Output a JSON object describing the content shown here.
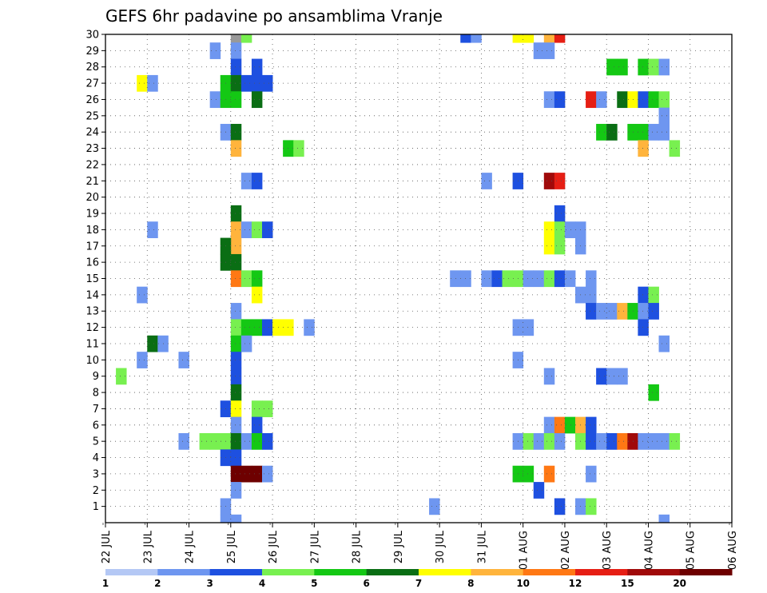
{
  "chart_data": {
    "type": "heatmap",
    "title": "GEFS 6hr padavine po ansamblima Vranje",
    "y_ticks": [
      "1",
      "2",
      "3",
      "4",
      "5",
      "6",
      "7",
      "8",
      "9",
      "10",
      "11",
      "12",
      "13",
      "14",
      "15",
      "16",
      "17",
      "18",
      "19",
      "20",
      "21",
      "22",
      "23",
      "24",
      "25",
      "26",
      "27",
      "28",
      "29",
      "30"
    ],
    "x_ticks": [
      "22 JUL",
      "23 JUL",
      "24 JUL",
      "25 JUL",
      "26 JUL",
      "27 JUL",
      "28 JUL",
      "29 JUL",
      "30 JUL",
      "31 JUL",
      "01 AUG",
      "02 AUG",
      "03 AUG",
      "04 AUG",
      "05 AUG",
      "06 AUG"
    ],
    "ylim": [
      0,
      30
    ],
    "grid": true,
    "colorbar": {
      "labels": [
        "1",
        "2",
        "3",
        "4",
        "5",
        "6",
        "7",
        "8",
        "10",
        "12",
        "15",
        "20"
      ],
      "colors": [
        "#b4c8f5",
        "#6e96f0",
        "#1e50e0",
        "#78f050",
        "#14c814",
        "#0a6e14",
        "#ffff00",
        "#ffb43c",
        "#ff7814",
        "#e61e14",
        "#a00a0a",
        "#6e0000"
      ]
    },
    "cells": [
      [
        30,
        25.0,
        25.25,
        12
      ],
      [
        30,
        25.25,
        25.5,
        3
      ],
      [
        30,
        30.5,
        30.75,
        2
      ],
      [
        30,
        30.75,
        31.0,
        1
      ],
      [
        30,
        31.75,
        32.0,
        6
      ],
      [
        30,
        32.0,
        32.25,
        6
      ],
      [
        30,
        32.5,
        32.75,
        7
      ],
      [
        30,
        32.75,
        33.0,
        9
      ],
      [
        29,
        24.5,
        24.75,
        1
      ],
      [
        29,
        25.0,
        25.25,
        1
      ],
      [
        29,
        32.25,
        32.5,
        1
      ],
      [
        29,
        32.5,
        32.75,
        1
      ],
      [
        28,
        25.0,
        25.25,
        2
      ],
      [
        28,
        25.5,
        25.75,
        2
      ],
      [
        28,
        34.0,
        34.25,
        4
      ],
      [
        28,
        34.25,
        34.5,
        4
      ],
      [
        28,
        34.75,
        35.0,
        4
      ],
      [
        28,
        35.0,
        35.25,
        3
      ],
      [
        28,
        35.25,
        35.5,
        1
      ],
      [
        27,
        22.75,
        23.0,
        6
      ],
      [
        27,
        23.0,
        23.25,
        1
      ],
      [
        27,
        24.75,
        25.0,
        4
      ],
      [
        27,
        25.0,
        25.25,
        5
      ],
      [
        27,
        25.25,
        25.5,
        2
      ],
      [
        27,
        25.5,
        25.75,
        2
      ],
      [
        27,
        25.75,
        26.0,
        2
      ],
      [
        26,
        24.5,
        24.75,
        1
      ],
      [
        26,
        24.75,
        25.0,
        4
      ],
      [
        26,
        25.0,
        25.25,
        4
      ],
      [
        26,
        25.5,
        25.75,
        5
      ],
      [
        26,
        32.5,
        32.75,
        1
      ],
      [
        26,
        32.75,
        33.0,
        2
      ],
      [
        26,
        33.5,
        33.75,
        9
      ],
      [
        26,
        33.75,
        34.0,
        1
      ],
      [
        26,
        34.25,
        34.5,
        5
      ],
      [
        26,
        34.5,
        34.75,
        6
      ],
      [
        26,
        34.75,
        35.0,
        2
      ],
      [
        26,
        35.0,
        35.25,
        4
      ],
      [
        26,
        35.25,
        35.5,
        3
      ],
      [
        25,
        35.25,
        35.5,
        1
      ],
      [
        24,
        24.75,
        25.0,
        1
      ],
      [
        24,
        25.0,
        25.25,
        5
      ],
      [
        24,
        33.75,
        34.0,
        4
      ],
      [
        24,
        34.0,
        34.25,
        5
      ],
      [
        24,
        34.5,
        34.75,
        4
      ],
      [
        24,
        34.75,
        35.0,
        4
      ],
      [
        24,
        35.0,
        35.25,
        1
      ],
      [
        24,
        35.25,
        35.5,
        1
      ],
      [
        23,
        25.0,
        25.25,
        7
      ],
      [
        23,
        26.25,
        26.5,
        4
      ],
      [
        23,
        26.5,
        26.75,
        3
      ],
      [
        23,
        34.75,
        35.0,
        7
      ],
      [
        23,
        35.5,
        35.75,
        3
      ],
      [
        21,
        25.25,
        25.5,
        1
      ],
      [
        21,
        25.5,
        25.75,
        2
      ],
      [
        21,
        31.0,
        31.25,
        1
      ],
      [
        21,
        31.75,
        32.0,
        2
      ],
      [
        21,
        32.5,
        32.75,
        10
      ],
      [
        21,
        32.75,
        33.0,
        9
      ],
      [
        19,
        25.0,
        25.25,
        5
      ],
      [
        19,
        32.75,
        33.0,
        2
      ],
      [
        18,
        23.0,
        23.25,
        1
      ],
      [
        18,
        25.0,
        25.25,
        7
      ],
      [
        18,
        25.25,
        25.5,
        1
      ],
      [
        18,
        25.5,
        25.75,
        3
      ],
      [
        18,
        25.75,
        26.0,
        2
      ],
      [
        18,
        32.5,
        32.75,
        6
      ],
      [
        18,
        32.75,
        33.0,
        3
      ],
      [
        18,
        33.0,
        33.25,
        1
      ],
      [
        18,
        33.25,
        33.5,
        1
      ],
      [
        17,
        25.0,
        25.25,
        7
      ],
      [
        17,
        24.75,
        25.0,
        5
      ],
      [
        17,
        32.5,
        32.75,
        6
      ],
      [
        17,
        32.75,
        33.0,
        3
      ],
      [
        17,
        33.25,
        33.5,
        1
      ],
      [
        16,
        24.75,
        25.0,
        5
      ],
      [
        16,
        25.0,
        25.25,
        5
      ],
      [
        15,
        25.0,
        25.25,
        8
      ],
      [
        15,
        25.25,
        25.5,
        3
      ],
      [
        15,
        25.5,
        25.75,
        4
      ],
      [
        15,
        30.25,
        30.5,
        1
      ],
      [
        15,
        30.5,
        30.75,
        1
      ],
      [
        15,
        31.0,
        31.25,
        1
      ],
      [
        15,
        31.25,
        31.5,
        2
      ],
      [
        15,
        31.5,
        31.75,
        3
      ],
      [
        15,
        31.75,
        32.0,
        3
      ],
      [
        15,
        32.0,
        32.25,
        1
      ],
      [
        15,
        32.25,
        32.5,
        1
      ],
      [
        15,
        32.5,
        32.75,
        3
      ],
      [
        15,
        32.75,
        33.0,
        2
      ],
      [
        15,
        33.0,
        33.25,
        1
      ],
      [
        15,
        33.5,
        33.75,
        1
      ],
      [
        14,
        22.75,
        23.0,
        1
      ],
      [
        14,
        25.5,
        25.75,
        6
      ],
      [
        14,
        33.5,
        33.75,
        1
      ],
      [
        14,
        33.25,
        33.5,
        1
      ],
      [
        14,
        34.75,
        35.0,
        2
      ],
      [
        14,
        35.0,
        35.25,
        3
      ],
      [
        13,
        25.0,
        25.25,
        1
      ],
      [
        13,
        33.5,
        33.75,
        2
      ],
      [
        13,
        33.75,
        34.0,
        1
      ],
      [
        13,
        34.0,
        34.25,
        1
      ],
      [
        13,
        34.25,
        34.5,
        7
      ],
      [
        13,
        34.5,
        34.75,
        4
      ],
      [
        13,
        34.75,
        35.0,
        1
      ],
      [
        13,
        35.0,
        35.25,
        2
      ],
      [
        12,
        25.0,
        25.25,
        3
      ],
      [
        12,
        25.25,
        25.5,
        4
      ],
      [
        12,
        25.5,
        25.75,
        4
      ],
      [
        12,
        25.75,
        26.0,
        2
      ],
      [
        12,
        26.0,
        26.25,
        6
      ],
      [
        12,
        26.25,
        26.5,
        6
      ],
      [
        12,
        26.75,
        27.0,
        1
      ],
      [
        12,
        31.75,
        32.0,
        1
      ],
      [
        12,
        32.0,
        32.25,
        1
      ],
      [
        12,
        34.75,
        35.0,
        2
      ],
      [
        11,
        23.0,
        23.25,
        5
      ],
      [
        11,
        23.25,
        23.5,
        1
      ],
      [
        11,
        25.0,
        25.25,
        4
      ],
      [
        11,
        25.25,
        25.5,
        1
      ],
      [
        11,
        35.25,
        35.5,
        1
      ],
      [
        10,
        22.75,
        23.0,
        1
      ],
      [
        10,
        23.75,
        24.0,
        1
      ],
      [
        10,
        25.0,
        25.25,
        2
      ],
      [
        10,
        31.75,
        32.0,
        1
      ],
      [
        9,
        22.25,
        22.5,
        3
      ],
      [
        9,
        25.0,
        25.25,
        2
      ],
      [
        9,
        32.5,
        32.75,
        1
      ],
      [
        9,
        33.75,
        34.0,
        2
      ],
      [
        9,
        34.0,
        34.25,
        1
      ],
      [
        9,
        34.25,
        34.5,
        1
      ],
      [
        8,
        25.0,
        25.25,
        5
      ],
      [
        8,
        35.0,
        35.25,
        4
      ],
      [
        7,
        24.75,
        25.0,
        2
      ],
      [
        7,
        25.0,
        25.25,
        6
      ],
      [
        7,
        25.5,
        25.75,
        3
      ],
      [
        7,
        25.75,
        26.0,
        3
      ],
      [
        6,
        25.0,
        25.25,
        1
      ],
      [
        6,
        25.5,
        25.75,
        2
      ],
      [
        6,
        32.5,
        32.75,
        1
      ],
      [
        6,
        32.75,
        33.0,
        8
      ],
      [
        6,
        33.0,
        33.25,
        4
      ],
      [
        6,
        33.25,
        33.5,
        7
      ],
      [
        6,
        33.5,
        33.75,
        2
      ],
      [
        5,
        23.75,
        24.0,
        1
      ],
      [
        5,
        24.25,
        24.5,
        3
      ],
      [
        5,
        24.5,
        24.75,
        3
      ],
      [
        5,
        24.75,
        25.0,
        3
      ],
      [
        5,
        25.0,
        25.25,
        5
      ],
      [
        5,
        25.25,
        25.5,
        1
      ],
      [
        5,
        25.5,
        25.75,
        4
      ],
      [
        5,
        25.75,
        26.0,
        2
      ],
      [
        5,
        31.75,
        32.0,
        1
      ],
      [
        5,
        32.0,
        32.25,
        3
      ],
      [
        5,
        32.25,
        32.5,
        1
      ],
      [
        5,
        32.5,
        32.75,
        3
      ],
      [
        5,
        32.75,
        33.0,
        1
      ],
      [
        5,
        33.25,
        33.5,
        3
      ],
      [
        5,
        33.5,
        33.75,
        2
      ],
      [
        5,
        33.75,
        34.0,
        1
      ],
      [
        5,
        34.0,
        34.25,
        2
      ],
      [
        5,
        34.25,
        34.5,
        8
      ],
      [
        5,
        34.5,
        34.75,
        10
      ],
      [
        5,
        34.75,
        35.0,
        1
      ],
      [
        5,
        35.0,
        35.25,
        1
      ],
      [
        5,
        35.25,
        35.5,
        1
      ],
      [
        5,
        35.5,
        35.75,
        3
      ],
      [
        4,
        24.75,
        25.0,
        2
      ],
      [
        4,
        25.0,
        25.25,
        2
      ],
      [
        3,
        25.0,
        25.25,
        11
      ],
      [
        3,
        25.25,
        25.5,
        11
      ],
      [
        3,
        25.5,
        25.75,
        11
      ],
      [
        3,
        25.75,
        26.0,
        1
      ],
      [
        3,
        31.75,
        32.0,
        4
      ],
      [
        3,
        32.0,
        32.25,
        4
      ],
      [
        3,
        32.5,
        32.75,
        8
      ],
      [
        3,
        33.5,
        33.75,
        1
      ],
      [
        2,
        25.0,
        25.25,
        1
      ],
      [
        2,
        32.25,
        32.5,
        2
      ],
      [
        1,
        24.75,
        25.0,
        1
      ],
      [
        1,
        29.75,
        30.0,
        1
      ],
      [
        1,
        32.75,
        33.0,
        2
      ],
      [
        1,
        33.25,
        33.5,
        1
      ],
      [
        1,
        33.5,
        33.75,
        3
      ],
      [
        0,
        24.75,
        25.0,
        1
      ],
      [
        0,
        25.0,
        25.25,
        1
      ],
      [
        0,
        35.25,
        35.5,
        1
      ]
    ]
  }
}
